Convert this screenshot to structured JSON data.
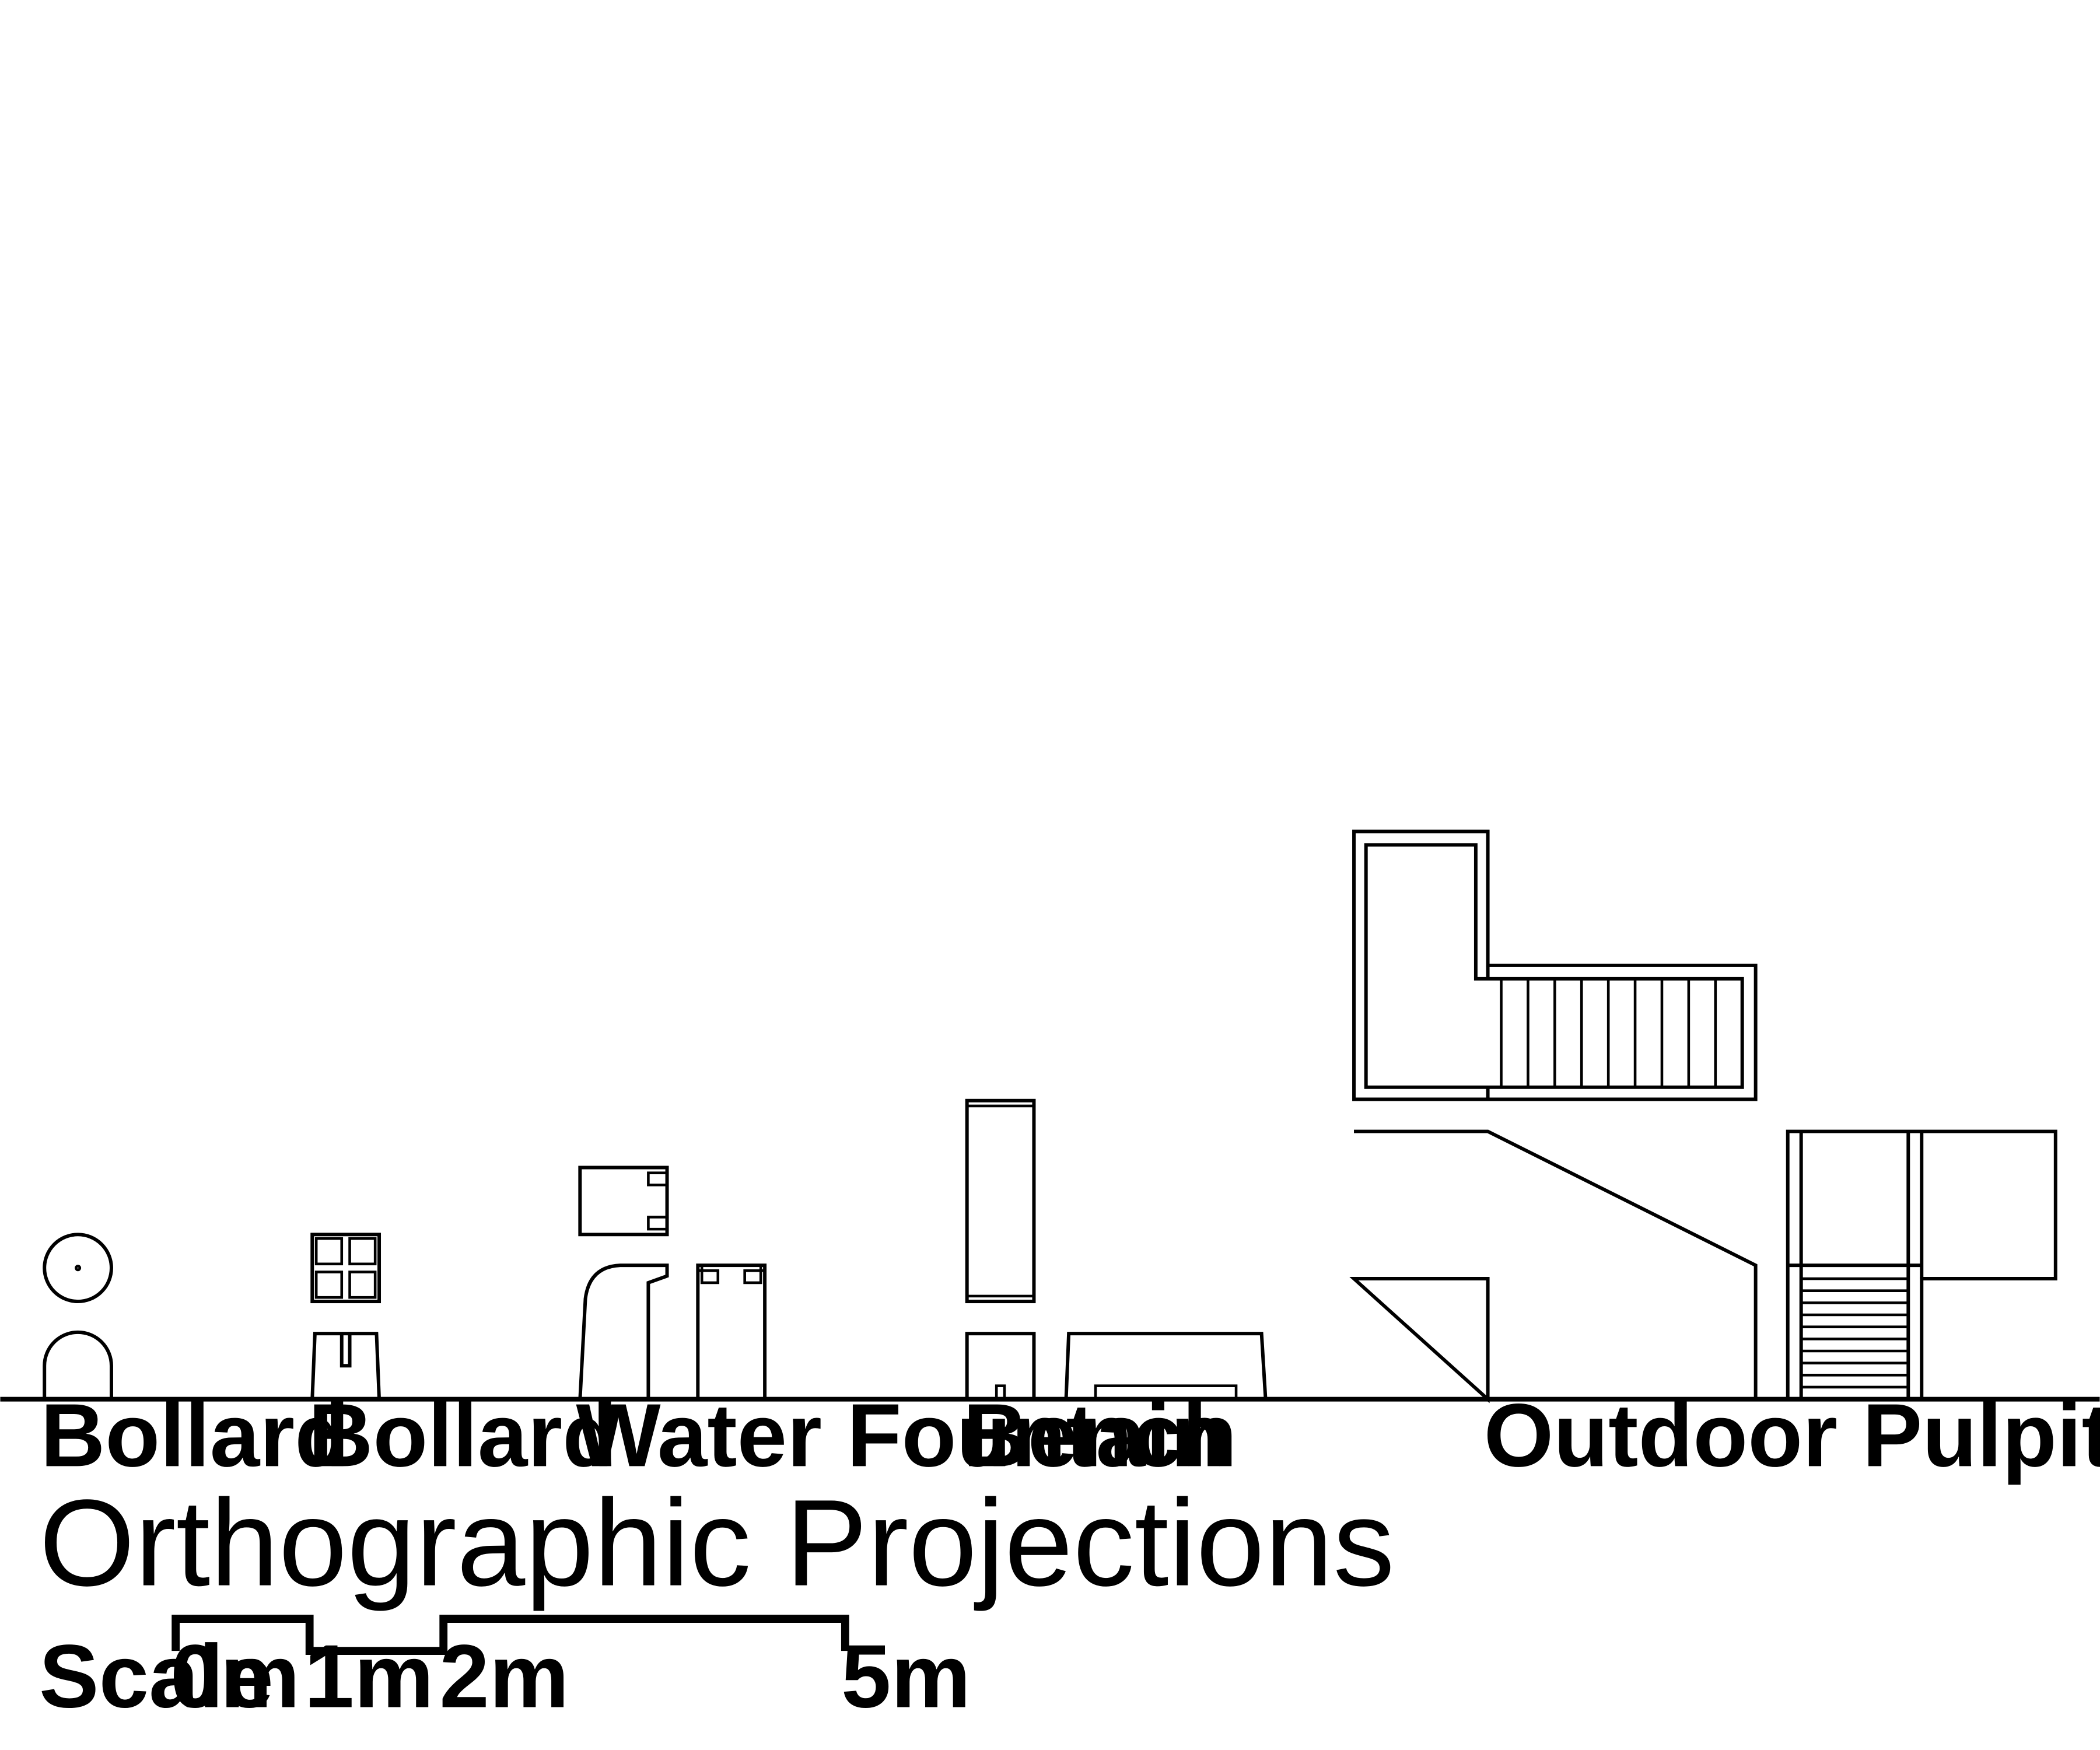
{
  "labels": {
    "bollard_1": "Bollard",
    "bollard_2": "Bollard",
    "water_fountain": "Water Fountain",
    "bench": "Bench",
    "outdoor_pulpit": "Outdoor Pulpit"
  },
  "title": "Orthographic Projections",
  "scale": {
    "label": "Scale",
    "ticks": [
      "0m",
      "1m",
      "2m",
      "5m"
    ]
  },
  "colors": {
    "line": "#000000",
    "background": "#ffffff"
  }
}
